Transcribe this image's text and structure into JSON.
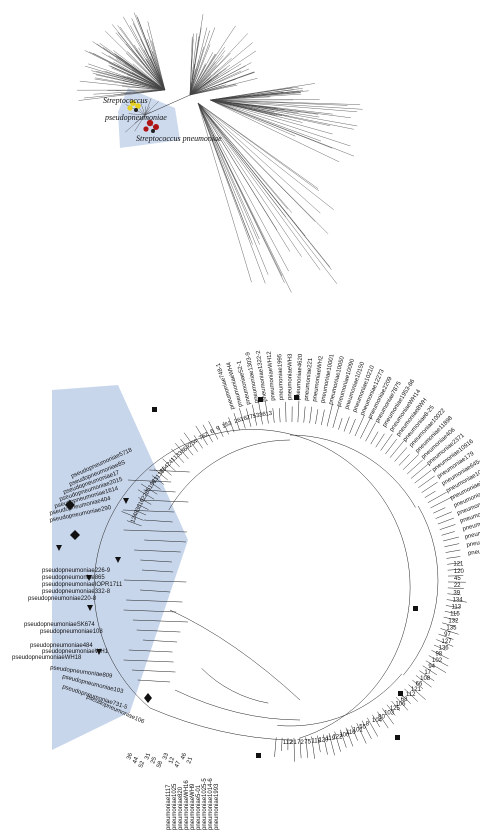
{
  "unrooted_tree": {
    "species_labels": [
      {
        "line1": "Streptococcus",
        "line2": "pseudopneumoniae"
      },
      {
        "line1": "Streptococcus pneumoniae",
        "line2": ""
      }
    ],
    "colors": {
      "highlight": "#c8d6ec",
      "pseudo_marker": "#e8d21f",
      "pneumo_marker": "#b01515"
    }
  },
  "circular_tree": {
    "highlight_color": "#c8d6ec",
    "pseudo_leaves": [
      "pseudopneumoniae5718",
      "pseudopneumoniae8S",
      "pseudopneumoniae17",
      "pseudopneumoniae2015",
      "pseudopneumoniae1614",
      "pseudopneumoniae404",
      "pseudopneumoniae290",
      "pseudopneumoniae226-9",
      "pseudopneumoniae865",
      "pseudopneumoniaeIOPR1711",
      "pseudopneumoniae332-8",
      "pseudopneumoniae220-8",
      "pseudopneumoniaeSK674",
      "pseudopneumoniae108",
      "pseudopneumoniae484",
      "pseudopneumoniaeWH1",
      "pseudopneumoniaeWH18",
      "pseudopneumoniae809",
      "pseudopneumoniae103",
      "pseudopneumoniae731-5",
      "pseudopneumoniae106"
    ],
    "pneumo_leaves": [
      "pneumoniae748-1",
      "pneumoniaeWH4",
      "pneumoniae52-1",
      "pneumoniae1303-9",
      "pneumoniae1322-2",
      "pneumoniaeWH12",
      "pneumoniae1995",
      "pneumoniaeWH3",
      "pneumoniae4620",
      "pneumoniae221",
      "pneumoniaeWH2",
      "pneumoniae10001",
      "pneumoniae10050",
      "pneumoniae10090",
      "pneumoniae10150",
      "pneumoniae10210",
      "pneumoniae12273",
      "pneumoniae2209",
      "pneumoniae7875",
      "pneumoniae1953-86",
      "pneumoniaeWH14",
      "pneumoniae8WH",
      "pneumoniae8-25",
      "pneumoniae10022",
      "pneumoniae11898",
      "pneumoniae406",
      "pneumoniae2371",
      "pneumoniae10916",
      "pneumoniae179",
      "pneumoniae645-2",
      "pneumoniae10916",
      "pneumoniae748-9",
      "pneumoniae12665",
      "pneumoniae2117",
      "pneumoniae839",
      "pneumoniae521-7",
      "pneumoniae518",
      "pneumoniae10388",
      "pneumoniae699"
    ],
    "bottom_leaves": [
      "pneumoniae1117",
      "pneumoniae1025",
      "pneumoniae820",
      "pneumoniaeWH16",
      "pneumoniaeWH9",
      "pneumoniae5-01",
      "pneumoniae1025-5",
      "pneumoniae1014-6",
      "pneumoniae1993"
    ],
    "node_numbers_left": [
      "12",
      "48",
      "36",
      "10",
      "22",
      "85",
      "107",
      "63",
      "137",
      "86",
      "42",
      "41",
      "13",
      "38",
      "69",
      "23",
      "4",
      "76",
      "2",
      "6",
      "9",
      "15",
      "3",
      "26",
      "16",
      "27",
      "53",
      "36",
      "13"
    ],
    "node_numbers_right": [
      "121",
      "120",
      "45",
      "22",
      "39",
      "134",
      "113",
      "115",
      "132",
      "135",
      "97",
      "127",
      "136",
      "98",
      "102",
      "94",
      "17",
      "108",
      "66",
      "121",
      "112",
      "68",
      "106",
      "125",
      "103",
      "80",
      "104",
      "8",
      "55",
      "101",
      "110",
      "100",
      "122",
      "119",
      "120",
      "118",
      "75",
      "72",
      "21",
      "112"
    ],
    "node_numbers_bottom": [
      "36",
      "44",
      "52",
      "31",
      "25",
      "58",
      "33",
      "12",
      "47",
      "46",
      "21"
    ]
  }
}
